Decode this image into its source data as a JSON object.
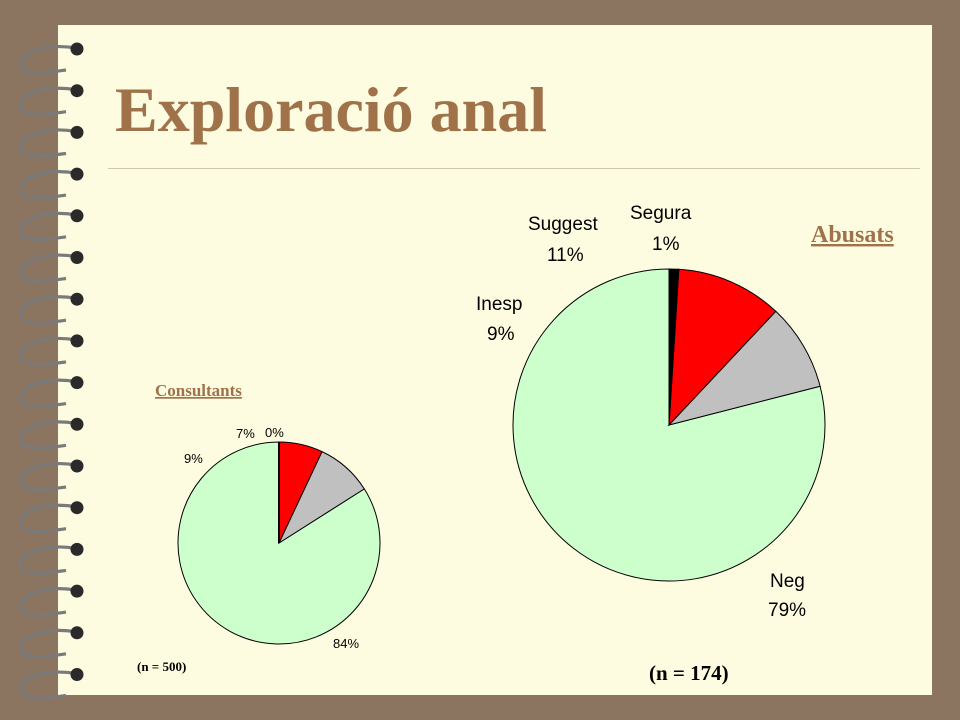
{
  "slide": {
    "title": "Exploració anal",
    "colors": {
      "background": "#8B7560",
      "slide": "#FEFCE0",
      "title": "#A0724A",
      "ring": "#7A7A7A"
    }
  },
  "chart_data": [
    {
      "type": "pie",
      "title": "Consultants",
      "note": "(n = 500)",
      "slices": [
        {
          "value": 84,
          "label": "84%",
          "color": "#CCFFCC"
        },
        {
          "value": 9,
          "label": "9%",
          "color": "#C0C0C0"
        },
        {
          "value": 7,
          "label": "7%",
          "color": "#FF0000"
        },
        {
          "value": 0,
          "label": "0%",
          "color": "#000000"
        }
      ]
    },
    {
      "type": "pie",
      "title": "Abusats",
      "note": "(n = 174)",
      "slices": [
        {
          "name": "Neg",
          "value": 79,
          "label": "79%",
          "color": "#CCFFCC"
        },
        {
          "name": "Inesp",
          "value": 9,
          "label": "9%",
          "color": "#C0C0C0"
        },
        {
          "name": "Suggest",
          "value": 11,
          "label": "11%",
          "color": "#FF0000"
        },
        {
          "name": "Segura",
          "value": 1,
          "label": "1%",
          "color": "#000000"
        }
      ]
    }
  ]
}
